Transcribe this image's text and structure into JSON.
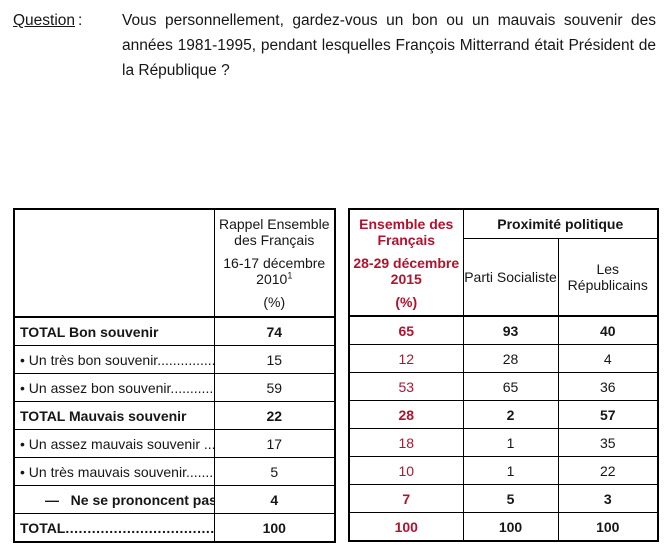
{
  "colors": {
    "accent_red": "#b2122e",
    "text_black": "#161616"
  },
  "question": {
    "label": "Question",
    "colon": ":",
    "text": "Vous personnellement, gardez-vous un bon ou un mauvais souvenir des années 1981-1995, pendant lesquelles François Mitterrand était Président de la République ?"
  },
  "table": {
    "rappel_header": {
      "line1": "Rappel Ensemble des Français",
      "line2": "16-17 décembre 2010",
      "superscript": "1",
      "unit": "(%)"
    },
    "ensemble_header": {
      "line1": "Ensemble des Français",
      "line2": "28-29 décembre 2015",
      "unit": "(%)"
    },
    "proximite_header": {
      "title": "Proximité politique",
      "col1": "Parti Socialiste",
      "col2": "Les Républicains"
    },
    "rows": [
      {
        "label": "TOTAL Bon souvenir",
        "rappel_2010": "74",
        "ensemble_2015": "65",
        "parti_socialiste": "93",
        "les_republicains": "40"
      },
      {
        "label": "• Un très bon souvenir...............",
        "rappel_2010": "15",
        "ensemble_2015": "12",
        "parti_socialiste": "28",
        "les_republicains": "4"
      },
      {
        "label": "• Un assez bon souvenir.............",
        "rappel_2010": "59",
        "ensemble_2015": "53",
        "parti_socialiste": "65",
        "les_republicains": "36"
      },
      {
        "label": "TOTAL Mauvais souvenir",
        "rappel_2010": "22",
        "ensemble_2015": "28",
        "parti_socialiste": "2",
        "les_republicains": "57"
      },
      {
        "label": "• Un assez mauvais souvenir .....",
        "rappel_2010": "17",
        "ensemble_2015": "18",
        "parti_socialiste": "1",
        "les_republicains": "35"
      },
      {
        "label": "• Un très mauvais souvenir........",
        "rappel_2010": "5",
        "ensemble_2015": "10",
        "parti_socialiste": "1",
        "les_republicains": "22"
      },
      {
        "label": "—   Ne se prononcent pas ..",
        "rappel_2010": "4",
        "ensemble_2015": "7",
        "parti_socialiste": "5",
        "les_republicains": "3"
      },
      {
        "label": "TOTAL",
        "dots": ".......................................",
        "rappel_2010": "100",
        "ensemble_2015": "100",
        "parti_socialiste": "100",
        "les_republicains": "100"
      }
    ]
  }
}
